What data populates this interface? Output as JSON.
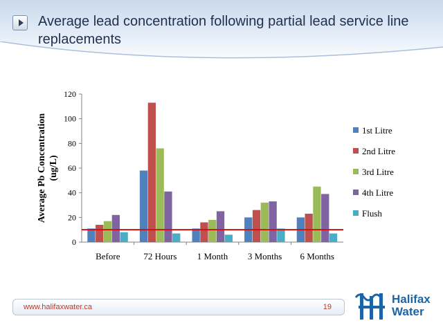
{
  "slide": {
    "title": "Average lead concentration following partial lead service line replacements",
    "footer_url": "www.halifaxwater.ca",
    "page_number": "19"
  },
  "logo": {
    "line1": "Halifax",
    "line2": "Water"
  },
  "colors": {
    "accent": "#1b64a8",
    "footer_text": "#c0392b",
    "reference_line": "#d01010"
  },
  "chart_data": {
    "type": "bar",
    "title": "",
    "xlabel": "",
    "ylabel": "Average Pb Concentration (ug/L)",
    "ylabel_lines": [
      "Average Pb Concentration",
      "(ug/L)"
    ],
    "categories": [
      "Before",
      "72 Hours",
      "1 Month",
      "3 Months",
      "6 Months"
    ],
    "ylim": [
      0,
      120
    ],
    "yticks": [
      0,
      20,
      40,
      60,
      80,
      100,
      120
    ],
    "grid": false,
    "legend": "right",
    "series": [
      {
        "name": "1st Litre",
        "color": "#4f81bd",
        "values": [
          11,
          58,
          11,
          20,
          20
        ]
      },
      {
        "name": "2nd Litre",
        "color": "#c0504d",
        "values": [
          14,
          113,
          16,
          26,
          23
        ]
      },
      {
        "name": "3rd Litre",
        "color": "#9bbb59",
        "values": [
          17,
          76,
          18,
          32,
          45
        ]
      },
      {
        "name": "4th Litre",
        "color": "#8064a2",
        "values": [
          22,
          41,
          25,
          33,
          39
        ]
      },
      {
        "name": "Flush",
        "color": "#4bacc6",
        "values": [
          8,
          7,
          6,
          11,
          7
        ]
      }
    ],
    "reference_line": {
      "y": 10
    }
  }
}
